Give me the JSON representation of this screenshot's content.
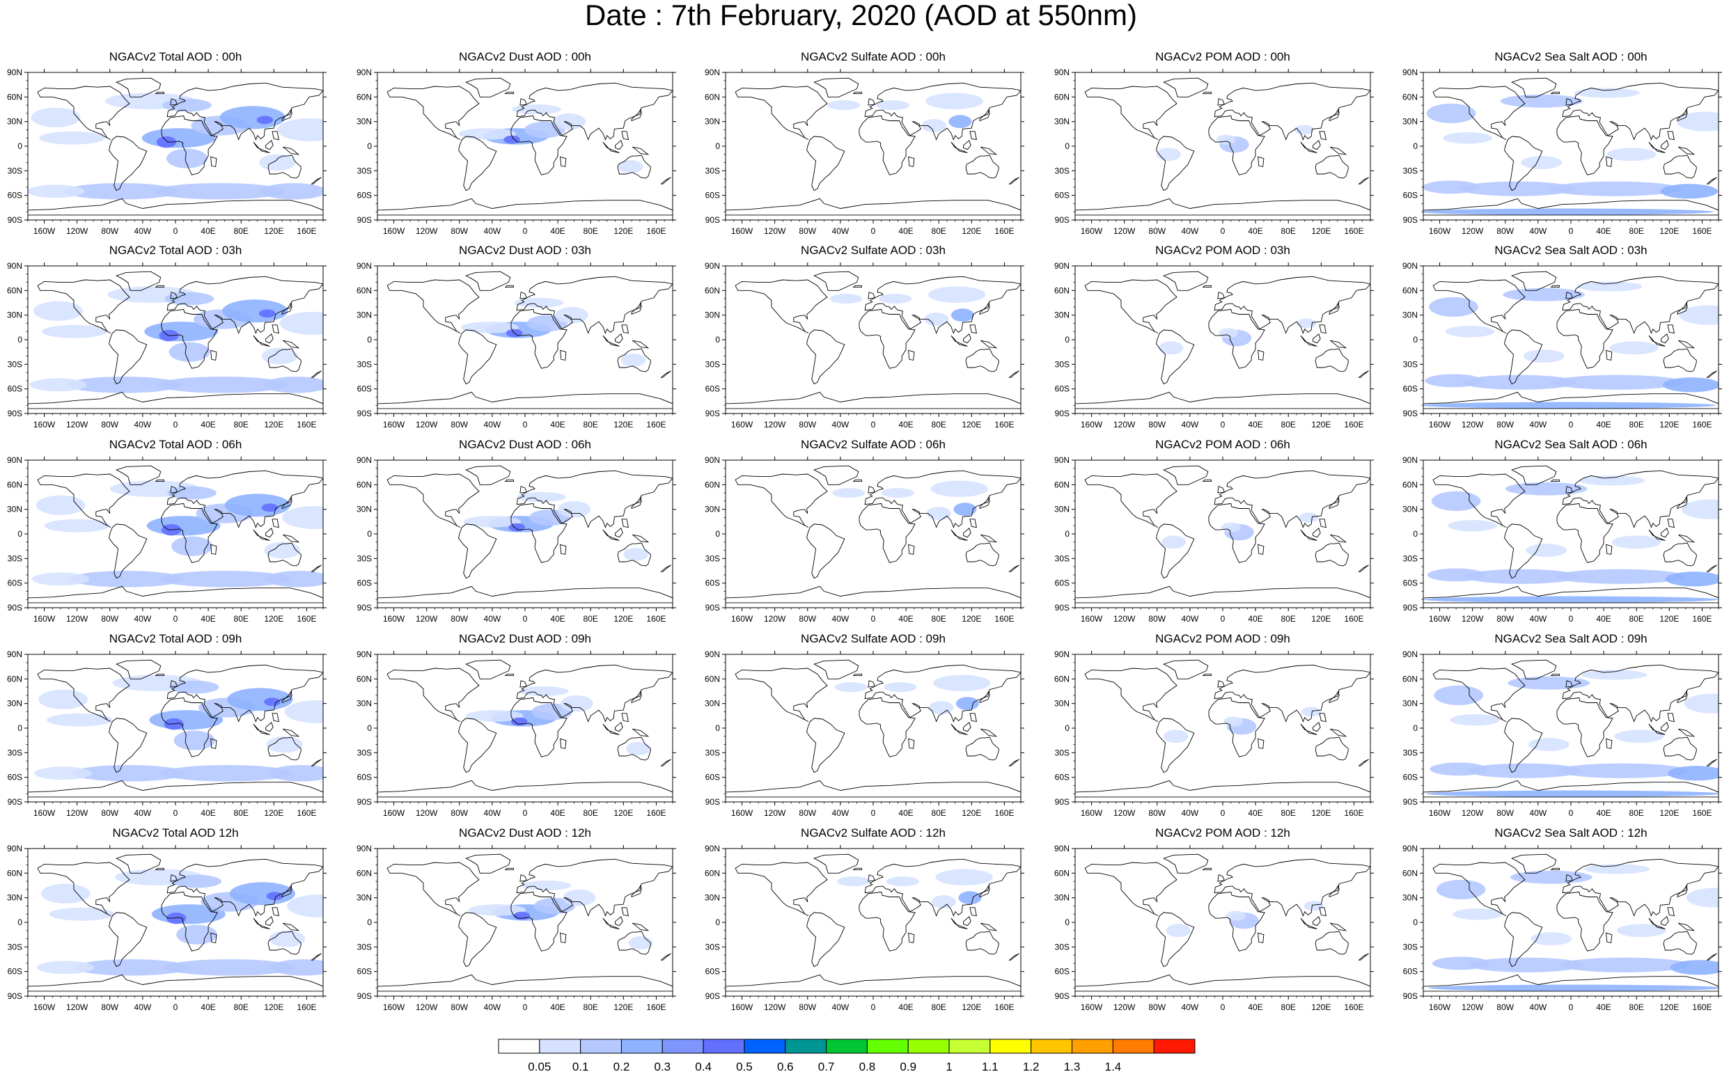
{
  "title": "Date : 7th February, 2020 (AOD at 550nm)",
  "panels": [
    [
      "NGACv2 Total AOD : 00h",
      "NGACv2 Dust AOD : 00h",
      "NGACv2 Sulfate AOD : 00h",
      "NGACv2 POM AOD : 00h",
      "NGACv2 Sea Salt AOD : 00h"
    ],
    [
      "NGACv2 Total AOD : 03h",
      "NGACv2 Dust AOD : 03h",
      "NGACv2 Sulfate AOD : 03h",
      "NGACv2 POM AOD : 03h",
      "NGACv2 Sea Salt AOD : 03h"
    ],
    [
      "NGACv2 Total AOD : 06h",
      "NGACv2 Dust AOD : 06h",
      "NGACv2 Sulfate AOD : 06h",
      "NGACv2 POM AOD : 06h",
      "NGACv2 Sea Salt AOD : 06h"
    ],
    [
      "NGACv2 Total AOD : 09h",
      "NGACv2 Dust AOD : 09h",
      "NGACv2 Sulfate AOD : 09h",
      "NGACv2 POM AOD : 09h",
      "NGACv2 Sea Salt  AOD : 09h"
    ],
    [
      "NGACv2 Total AOD  12h",
      "NGACv2 Dust AOD : 12h",
      "NGACv2 Sulfate AOD : 12h",
      "NGACv2 POM  AOD : 12h",
      "NGACv2 Sea Salt  AOD : 12h"
    ]
  ],
  "axes": {
    "lat_ticks": [
      "90N",
      "60N",
      "30N",
      "0",
      "30S",
      "60S",
      "90S"
    ],
    "lon_ticks": [
      "160W",
      "120W",
      "80W",
      "40W",
      "0",
      "40E",
      "80E",
      "120E",
      "160E"
    ]
  },
  "colorbar": {
    "labels": [
      "0.05",
      "0.1",
      "0.2",
      "0.3",
      "0.4",
      "0.5",
      "0.6",
      "0.7",
      "0.8",
      "0.9",
      "1",
      "1.1",
      "1.2",
      "1.3",
      "1.4"
    ],
    "colors": [
      "#ffffff",
      "#d6e2ff",
      "#b5c9ff",
      "#8eb2ff",
      "#7f96ff",
      "#6370ff",
      "#0063ff",
      "#009696",
      "#00c633",
      "#63ff00",
      "#96ff00",
      "#c6ff33",
      "#ffff00",
      "#ffc600",
      "#ffa000",
      "#ff7c00",
      "#ff1900"
    ]
  },
  "colors": {
    "land_outline": "#000000",
    "aod_light": "#d6e2ff",
    "aod_mid": "#b5c9ff",
    "aod_high": "#8eb2ff",
    "aod_peak": "#6370ff"
  }
}
